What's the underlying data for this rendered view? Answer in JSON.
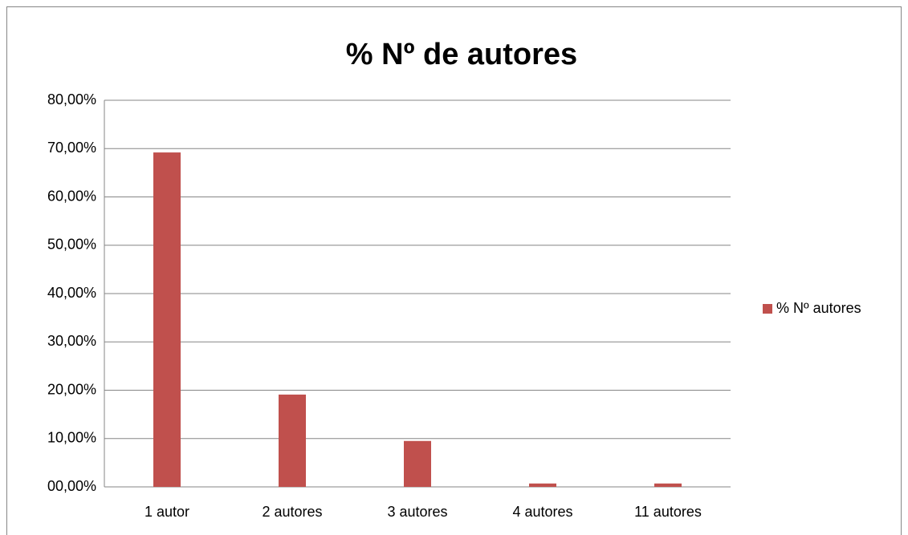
{
  "chart_data": {
    "type": "bar",
    "title": "% Nº de autores",
    "categories": [
      "1 autor",
      "2 autores",
      "3 autores",
      "4 autores",
      "11 autores"
    ],
    "series": [
      {
        "name": "% Nº autores",
        "color": "#c0504d",
        "values": [
          69.2,
          19.1,
          9.5,
          0.7,
          0.7
        ]
      }
    ],
    "ylim": [
      0,
      80
    ],
    "yticks": [
      {
        "value": 0,
        "label": "00,00%"
      },
      {
        "value": 10,
        "label": "10,00%"
      },
      {
        "value": 20,
        "label": "20,00%"
      },
      {
        "value": 30,
        "label": "30,00%"
      },
      {
        "value": 40,
        "label": "40,00%"
      },
      {
        "value": 50,
        "label": "50,00%"
      },
      {
        "value": 60,
        "label": "60,00%"
      },
      {
        "value": 70,
        "label": "70,00%"
      },
      {
        "value": 80,
        "label": "80,00%"
      }
    ],
    "grid": true,
    "legend": "right"
  }
}
